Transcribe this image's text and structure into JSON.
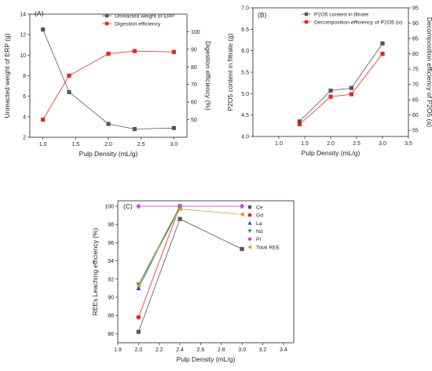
{
  "chart_data": [
    {
      "id": "A",
      "type": "line",
      "panel_label": "(A)",
      "xlabel": "Pulp Density (mL/g)",
      "ylabel": "Unreacted weight of ERP (g)",
      "y2label": "Digestion efficiency (%)",
      "xlim": [
        0.8,
        3.2
      ],
      "ylim": [
        2,
        14
      ],
      "y2lim": [
        40,
        110
      ],
      "xticks": [
        1.0,
        1.5,
        2.0,
        2.5,
        3.0
      ],
      "yticks": [
        2,
        4,
        6,
        8,
        10,
        12,
        14
      ],
      "y2ticks": [
        50,
        60,
        70,
        80,
        90,
        100
      ],
      "grid": false,
      "legend": "top-right",
      "series": [
        {
          "name": "Unreacted weight of ERP",
          "axis": "left",
          "color": "#555555",
          "marker": "square",
          "x": [
            1.0,
            1.4,
            2.0,
            2.4,
            3.0
          ],
          "values": [
            12.5,
            6.4,
            3.3,
            2.8,
            2.9
          ]
        },
        {
          "name": "Digestion efficiency",
          "axis": "right",
          "color": "#e8231f",
          "marker": "square",
          "x": [
            1.0,
            1.4,
            2.0,
            2.4,
            3.0
          ],
          "values": [
            50,
            75,
            87.5,
            89,
            88.5
          ]
        }
      ]
    },
    {
      "id": "B",
      "type": "line",
      "panel_label": "(B)",
      "xlabel": "Pulp Density (mL/g)",
      "ylabel": "P2O5 content in filtrate (g)",
      "y2label": "Decomposition efficiency of P2O5 (α)",
      "xlim": [
        0.5,
        3.5
      ],
      "ylim": [
        4.0,
        7.0
      ],
      "y2lim": [
        53,
        95
      ],
      "xticks": [
        1.0,
        1.5,
        2.0,
        2.5,
        3.0,
        3.5
      ],
      "yticks": [
        4.0,
        4.5,
        5.0,
        5.5,
        6.0,
        6.5,
        7.0
      ],
      "y2ticks": [
        55,
        60,
        65,
        70,
        75,
        80,
        85,
        90,
        95
      ],
      "grid": false,
      "legend": "top-left",
      "series": [
        {
          "name": "P2O5 content in filtrate",
          "axis": "left",
          "color": "#555555",
          "marker": "square",
          "x": [
            1.4,
            2.0,
            2.4,
            3.0
          ],
          "values": [
            4.35,
            5.07,
            5.13,
            6.17
          ]
        },
        {
          "name": "Decomposition efficiency of P2O5 (α)",
          "axis": "right",
          "color": "#e8231f",
          "marker": "square",
          "x": [
            1.4,
            2.0,
            2.4,
            3.0
          ],
          "values": [
            57,
            66,
            66.8,
            80
          ]
        }
      ]
    },
    {
      "id": "C",
      "type": "line",
      "panel_label": "(C)",
      "xlabel": "Pulp Density (mL/g)",
      "ylabel": "REEs Leaching efficiency (%)",
      "xlim": [
        1.8,
        3.5
      ],
      "ylim": [
        85,
        100.6
      ],
      "xticks": [
        1.8,
        2.0,
        2.2,
        2.4,
        2.6,
        2.8,
        3.0,
        3.2,
        3.4
      ],
      "yticks": [
        86,
        88,
        90,
        92,
        94,
        96,
        98,
        100
      ],
      "grid": false,
      "legend": "top-right",
      "series": [
        {
          "name": "Ce",
          "color": "#555555",
          "marker": "square",
          "x": [
            2.0,
            2.4,
            3.0
          ],
          "values": [
            86.2,
            98.6,
            95.3
          ]
        },
        {
          "name": "Gd",
          "color": "#e8231f",
          "marker": "circle",
          "x": [
            2.0,
            2.4
          ],
          "values": [
            87.8,
            100.0
          ]
        },
        {
          "name": "La",
          "color": "#1f4fe0",
          "marker": "triangle-up",
          "x": [
            2.0,
            2.4
          ],
          "values": [
            91.0,
            100.0
          ]
        },
        {
          "name": "Nd",
          "color": "#1aa55c",
          "marker": "triangle-down",
          "x": [
            2.0,
            2.4
          ],
          "values": [
            91.4,
            100.0
          ]
        },
        {
          "name": "Pr",
          "color": "#c44ce0",
          "marker": "diamond",
          "x": [
            2.0,
            2.4,
            3.0
          ],
          "values": [
            100.0,
            100.0,
            100.0
          ]
        },
        {
          "name": "Total REE",
          "color": "#d8a000",
          "marker": "triangle-left",
          "x": [
            2.0,
            2.4,
            3.0
          ],
          "values": [
            91.3,
            99.7,
            99.1
          ]
        }
      ]
    }
  ]
}
